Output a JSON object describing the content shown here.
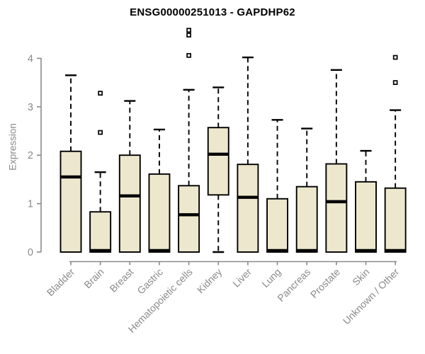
{
  "chart_data": {
    "type": "boxplot",
    "title": "ENSG00000251013 - GAPDHP62",
    "ylabel": "Expression",
    "xlabel": "",
    "ylim": [
      0,
      4
    ],
    "y_ticks": [
      0,
      1,
      2,
      3,
      4
    ],
    "grid": false,
    "x_label_rotation": 45,
    "categories": [
      "Bladder",
      "Brain",
      "Breast",
      "Gastric",
      "Hematopoietic cells",
      "Kidney",
      "Liver",
      "Lung",
      "Pancreas",
      "Prostate",
      "Skin",
      "Unknown / Other"
    ],
    "series": [
      {
        "name": "Bladder",
        "whisker_low": 0,
        "q1": 0,
        "median": 1.55,
        "q3": 2.08,
        "whisker_high": 3.65,
        "outliers": []
      },
      {
        "name": "Brain",
        "whisker_low": 0,
        "q1": 0,
        "median": 0.03,
        "q3": 0.83,
        "whisker_high": 1.65,
        "outliers": [
          2.47,
          3.28
        ]
      },
      {
        "name": "Breast",
        "whisker_low": 0,
        "q1": 0,
        "median": 1.16,
        "q3": 2.0,
        "whisker_high": 3.12,
        "outliers": []
      },
      {
        "name": "Gastric",
        "whisker_low": 0,
        "q1": 0,
        "median": 0.03,
        "q3": 1.61,
        "whisker_high": 2.53,
        "outliers": []
      },
      {
        "name": "Hematopoietic cells",
        "whisker_low": 0,
        "q1": 0,
        "median": 0.77,
        "q3": 1.37,
        "whisker_high": 3.35,
        "outliers": [
          4.06,
          4.48,
          4.58
        ]
      },
      {
        "name": "Kidney",
        "whisker_low": 0,
        "q1": 1.18,
        "median": 2.02,
        "q3": 2.57,
        "whisker_high": 3.4,
        "outliers": []
      },
      {
        "name": "Liver",
        "whisker_low": 0,
        "q1": 0,
        "median": 1.13,
        "q3": 1.81,
        "whisker_high": 4.02,
        "outliers": []
      },
      {
        "name": "Lung",
        "whisker_low": 0,
        "q1": 0,
        "median": 0.03,
        "q3": 1.1,
        "whisker_high": 2.73,
        "outliers": []
      },
      {
        "name": "Pancreas",
        "whisker_low": 0,
        "q1": 0,
        "median": 0.03,
        "q3": 1.35,
        "whisker_high": 2.55,
        "outliers": []
      },
      {
        "name": "Prostate",
        "whisker_low": 0,
        "q1": 0,
        "median": 1.04,
        "q3": 1.82,
        "whisker_high": 3.76,
        "outliers": []
      },
      {
        "name": "Skin",
        "whisker_low": 0,
        "q1": 0,
        "median": 0.03,
        "q3": 1.45,
        "whisker_high": 2.09,
        "outliers": []
      },
      {
        "name": "Unknown / Other",
        "whisker_low": 0,
        "q1": 0,
        "median": 0.03,
        "q3": 1.32,
        "whisker_high": 2.93,
        "outliers": [
          3.5,
          4.02
        ]
      }
    ],
    "colors": {
      "box_fill": "#EDE8CD",
      "box_border": "#000000",
      "median": "#000000",
      "whisker": "#000000",
      "outlier_stroke": "#000000",
      "axis": "#8a8a8a",
      "tick_label": "#8a8a8a",
      "title": "#000000",
      "background": "#ffffff"
    }
  }
}
